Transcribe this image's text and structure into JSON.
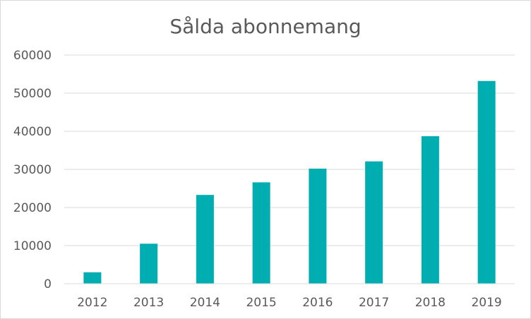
{
  "chart_data": {
    "type": "bar",
    "title": "Sålda abonnemang",
    "xlabel": "",
    "ylabel": "",
    "categories": [
      "2012",
      "2013",
      "2014",
      "2015",
      "2016",
      "2017",
      "2018",
      "2019"
    ],
    "values": [
      3000,
      10500,
      23300,
      26600,
      30200,
      32100,
      38700,
      53200
    ],
    "ylim": [
      0,
      60000
    ],
    "yticks": [
      0,
      10000,
      20000,
      30000,
      40000,
      50000,
      60000
    ],
    "grid": true,
    "legend": "none",
    "color": "#00AEB2"
  }
}
